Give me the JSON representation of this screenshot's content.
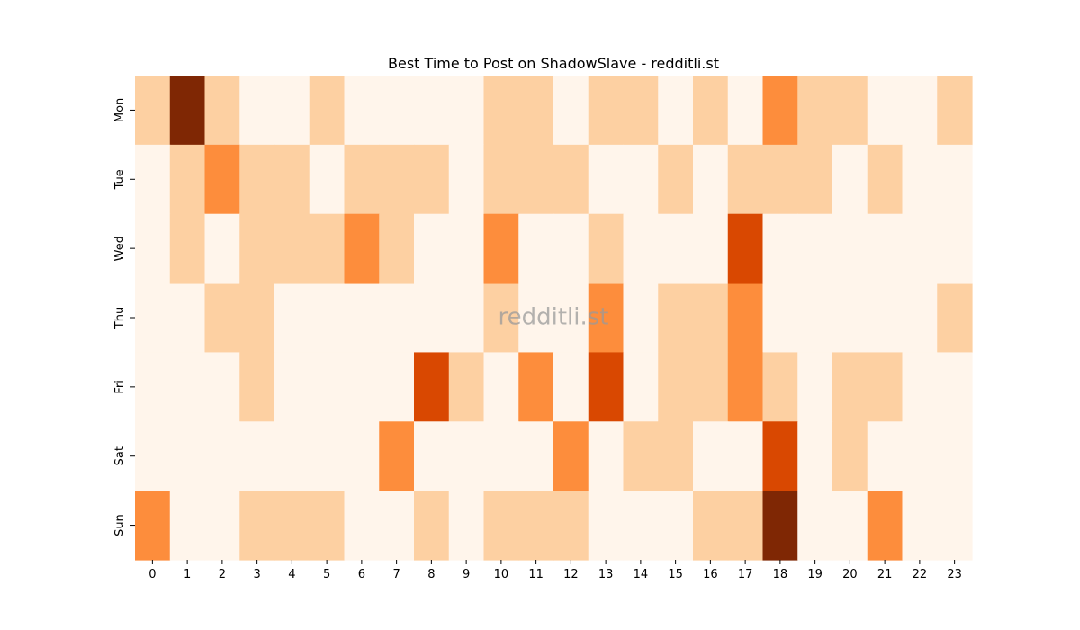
{
  "chart_data": {
    "type": "heatmap",
    "title": "Best Time to Post on ShadowSlave - redditli.st",
    "watermark": "redditli.st",
    "x_categories": [
      "0",
      "1",
      "2",
      "3",
      "4",
      "5",
      "6",
      "7",
      "8",
      "9",
      "10",
      "11",
      "12",
      "13",
      "14",
      "15",
      "16",
      "17",
      "18",
      "19",
      "20",
      "21",
      "22",
      "23"
    ],
    "y_categories": [
      "Mon",
      "Tue",
      "Wed",
      "Thu",
      "Fri",
      "Sat",
      "Sun"
    ],
    "value_range": [
      0,
      4
    ],
    "colormap": "Oranges",
    "colors": [
      "#fff5eb",
      "#fdd0a2",
      "#fd8d3c",
      "#d94801",
      "#7f2704"
    ],
    "colorbar": false,
    "grid": false,
    "values": [
      [
        1,
        4,
        1,
        0,
        0,
        1,
        0,
        0,
        0,
        0,
        1,
        1,
        0,
        1,
        1,
        0,
        1,
        0,
        2,
        1,
        1,
        0,
        0,
        1
      ],
      [
        0,
        1,
        2,
        1,
        1,
        0,
        1,
        1,
        1,
        0,
        1,
        1,
        1,
        0,
        0,
        1,
        0,
        1,
        1,
        1,
        0,
        1,
        0,
        0
      ],
      [
        0,
        1,
        0,
        1,
        1,
        1,
        2,
        1,
        0,
        0,
        2,
        0,
        0,
        1,
        0,
        0,
        0,
        3,
        0,
        0,
        0,
        0,
        0,
        0
      ],
      [
        0,
        0,
        1,
        1,
        0,
        0,
        0,
        0,
        0,
        0,
        1,
        0,
        0,
        2,
        0,
        1,
        1,
        2,
        0,
        0,
        0,
        0,
        0,
        1
      ],
      [
        0,
        0,
        0,
        1,
        0,
        0,
        0,
        0,
        3,
        1,
        0,
        2,
        0,
        3,
        0,
        1,
        1,
        2,
        1,
        0,
        1,
        1,
        0,
        0
      ],
      [
        0,
        0,
        0,
        0,
        0,
        0,
        0,
        2,
        0,
        0,
        0,
        0,
        2,
        0,
        1,
        1,
        0,
        0,
        3,
        0,
        1,
        0,
        0,
        0
      ],
      [
        2,
        0,
        0,
        1,
        1,
        1,
        0,
        0,
        1,
        0,
        1,
        1,
        1,
        0,
        0,
        0,
        1,
        1,
        4,
        0,
        0,
        2,
        0,
        0
      ]
    ]
  }
}
